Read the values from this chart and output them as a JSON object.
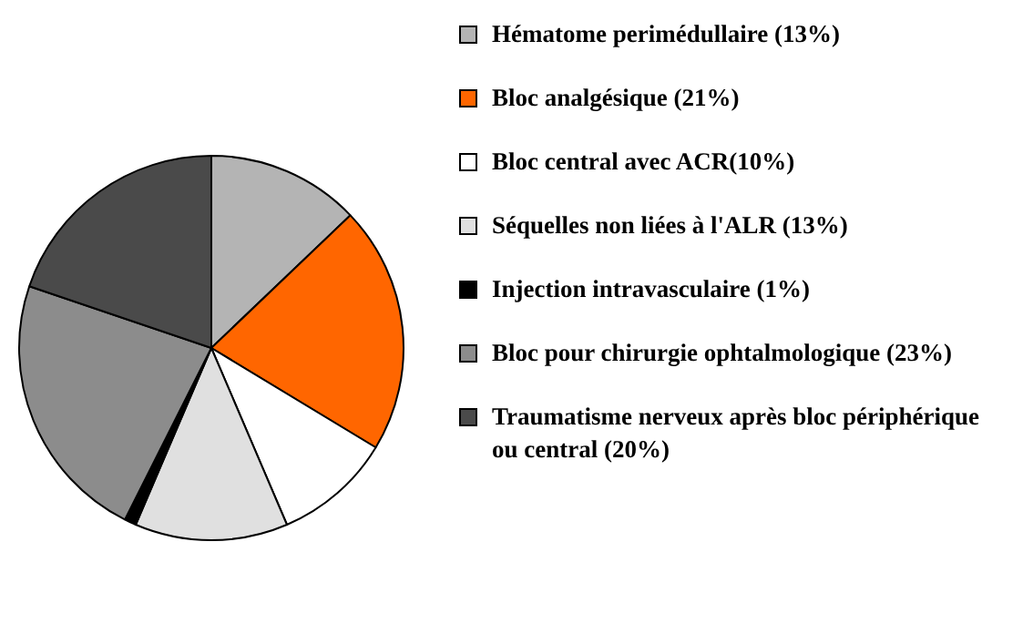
{
  "chart_data": {
    "type": "pie",
    "legend": "right",
    "categories": [
      "Hématome perimédullaire (13%)",
      "Bloc analgésique (21%)",
      "Bloc central avec ACR(10%)",
      "Séquelles non liées à l'ALR (13%)",
      "Injection intravasculaire (1%)",
      "Bloc pour chirurgie ophtalmologique (23%)",
      "Traumatisme nerveux après bloc périphérique ou central (20%)"
    ],
    "values": [
      13,
      21,
      10,
      13,
      1,
      23,
      20
    ],
    "colors": [
      "#b4b4b4",
      "#ff6600",
      "#ffffff",
      "#e0e0e0",
      "#000000",
      "#8c8c8c",
      "#4a4a4a"
    ]
  }
}
